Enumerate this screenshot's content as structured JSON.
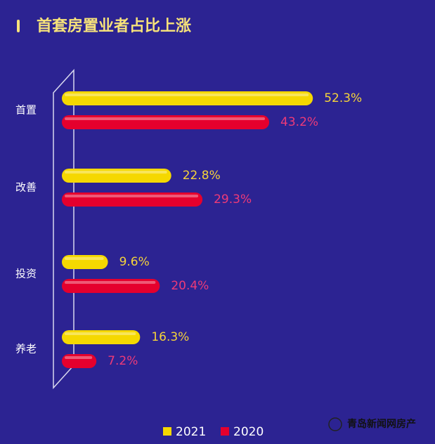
{
  "chart_data": {
    "type": "hbar",
    "title": "首套房置业者占比上涨",
    "categories": [
      "首置",
      "改善",
      "投资",
      "养老"
    ],
    "series": [
      {
        "name": "2021",
        "color": "#f5d800",
        "values": [
          52.3,
          22.8,
          9.6,
          16.3
        ],
        "value_labels": [
          "52.3%",
          "22.8%",
          "9.6%",
          "16.3%"
        ]
      },
      {
        "name": "2020",
        "color": "#e5002d",
        "values": [
          43.2,
          29.3,
          20.4,
          7.2
        ],
        "value_labels": [
          "43.2%",
          "29.3%",
          "20.4%",
          "7.2%"
        ]
      }
    ],
    "source": "青岛新闻网房产"
  }
}
